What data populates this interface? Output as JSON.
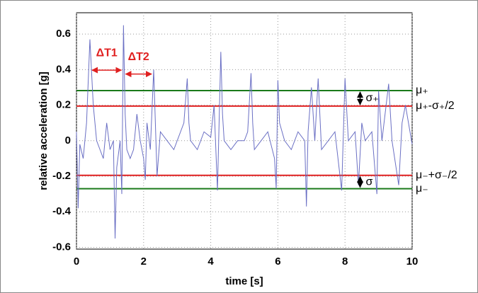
{
  "chart_data": {
    "type": "line",
    "xlabel": "time [s]",
    "ylabel": "relative acceleration [g]",
    "xlim": [
      0,
      10
    ],
    "ylim": [
      -0.61,
      0.72
    ],
    "xticks": [
      0,
      2,
      4,
      6,
      8,
      10
    ],
    "yticks": [
      -0.6,
      -0.4,
      -0.2,
      0,
      0.2,
      0.4,
      0.6
    ],
    "grid": true,
    "x": [
      0,
      0.05,
      0.1,
      0.2,
      0.3,
      0.4,
      0.5,
      0.6,
      0.7,
      0.8,
      0.9,
      1.0,
      1.1,
      1.15,
      1.2,
      1.3,
      1.35,
      1.4,
      1.45,
      1.5,
      1.6,
      1.7,
      1.8,
      1.9,
      2.0,
      2.05,
      2.1,
      2.2,
      2.3,
      2.4,
      2.5,
      2.7,
      2.9,
      3.1,
      3.2,
      3.3,
      3.35,
      3.4,
      3.6,
      3.8,
      4.0,
      4.1,
      4.2,
      4.3,
      4.35,
      4.4,
      4.6,
      4.8,
      5.0,
      5.1,
      5.2,
      5.25,
      5.3,
      5.5,
      5.7,
      5.9,
      5.95,
      6.0,
      6.05,
      6.2,
      6.4,
      6.6,
      6.8,
      6.85,
      6.9,
      7.0,
      7.1,
      7.2,
      7.3,
      7.5,
      7.7,
      7.9,
      8.0,
      8.1,
      8.3,
      8.4,
      8.5,
      8.6,
      8.8,
      8.95,
      9.0,
      9.1,
      9.3,
      9.4,
      9.6,
      9.7,
      9.8,
      10.0
    ],
    "series": [
      {
        "color": "#6a6fc4",
        "values": [
          0.05,
          -0.38,
          -0.02,
          -0.1,
          0.1,
          0.57,
          0.2,
          0.0,
          -0.05,
          -0.1,
          0.1,
          -0.05,
          0.0,
          -0.55,
          -0.15,
          0.0,
          -0.3,
          0.65,
          0.15,
          -0.05,
          -0.1,
          -0.05,
          0.15,
          0.0,
          -0.1,
          -0.22,
          0.1,
          -0.05,
          0.4,
          -0.2,
          0.05,
          0.0,
          -0.05,
          0.05,
          0.1,
          0.35,
          0.1,
          0.0,
          -0.05,
          0.05,
          0.02,
          0.2,
          -0.28,
          0.5,
          0.15,
          0.0,
          -0.05,
          0.0,
          0.0,
          0.05,
          0.38,
          0.1,
          -0.05,
          0.0,
          0.05,
          -0.1,
          -0.27,
          0.34,
          0.1,
          0.0,
          -0.05,
          0.05,
          0.0,
          -0.37,
          0.05,
          0.3,
          0.0,
          0.35,
          -0.05,
          0.0,
          0.05,
          -0.28,
          0.35,
          0.0,
          0.05,
          -0.25,
          0.1,
          0.0,
          0.05,
          -0.3,
          0.28,
          0.0,
          0.32,
          0.0,
          -0.25,
          0.1,
          0.2,
          -0.02
        ]
      }
    ],
    "reference_lines": [
      {
        "name": "μ₊",
        "value": 0.282,
        "color": "#1a7a1a"
      },
      {
        "name": "μ₊-σ₊/2",
        "value": 0.195,
        "color": "#e02020"
      },
      {
        "name": "μ₋+σ₋/2",
        "value": -0.195,
        "color": "#e02020"
      },
      {
        "name": "μ₋",
        "value": -0.27,
        "color": "#1a7a1a"
      }
    ],
    "intervals": [
      {
        "label": "ΔT1",
        "x1": 0.4,
        "x2": 1.4,
        "y": 0.397,
        "color": "#e02020"
      },
      {
        "label": "ΔT2",
        "x1": 1.4,
        "x2": 2.3,
        "y": 0.375,
        "color": "#e02020"
      }
    ],
    "spreads": [
      {
        "label": "σ₊",
        "x": 8.45,
        "y1": 0.282,
        "y2": 0.195
      },
      {
        "label": "σ",
        "x": 8.45,
        "y1": -0.195,
        "y2": -0.27
      }
    ]
  }
}
